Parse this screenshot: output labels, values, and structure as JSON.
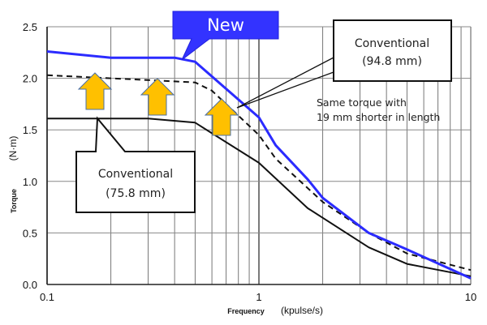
{
  "chart_data": {
    "type": "line",
    "title": "",
    "xlabel": "Frequency",
    "xunit": "(kpulse/s)",
    "ylabel": "Torque",
    "yunit": "(N·m)",
    "xscale": "log",
    "xlim": [
      0.1,
      10
    ],
    "ylim": [
      0,
      2.5
    ],
    "grid": true,
    "x_ticks": [
      {
        "v": 0.1,
        "label": "0.1"
      },
      {
        "v": 1,
        "label": "1"
      },
      {
        "v": 10,
        "label": "10"
      }
    ],
    "y_ticks": [
      {
        "v": 0,
        "label": "0.0"
      },
      {
        "v": 0.5,
        "label": "0.5"
      },
      {
        "v": 1,
        "label": "1.0"
      },
      {
        "v": 1.5,
        "label": "1.5"
      },
      {
        "v": 2,
        "label": "2.0"
      },
      {
        "v": 2.5,
        "label": "2.5"
      }
    ],
    "series": [
      {
        "name": "New",
        "style": "solid",
        "color": "#2b2bff",
        "points": [
          [
            0.1,
            2.26
          ],
          [
            0.2,
            2.2
          ],
          [
            0.4,
            2.2
          ],
          [
            0.5,
            2.16
          ],
          [
            1,
            1.62
          ],
          [
            1.2,
            1.35
          ],
          [
            1.7,
            1.02
          ],
          [
            2,
            0.84
          ],
          [
            3.3,
            0.5
          ],
          [
            5,
            0.34
          ],
          [
            10,
            0.06
          ]
        ]
      },
      {
        "name": "Conventional (94.8 mm)",
        "style": "dashed",
        "color": "#111111",
        "points": [
          [
            0.1,
            2.03
          ],
          [
            0.2,
            2.0
          ],
          [
            0.4,
            1.97
          ],
          [
            0.5,
            1.96
          ],
          [
            0.6,
            1.88
          ],
          [
            1,
            1.45
          ],
          [
            1.2,
            1.22
          ],
          [
            2,
            0.8
          ],
          [
            3.3,
            0.5
          ],
          [
            5,
            0.3
          ],
          [
            10,
            0.14
          ]
        ]
      },
      {
        "name": "Conventional (75.8 mm)",
        "style": "solid",
        "color": "#111111",
        "points": [
          [
            0.1,
            1.61
          ],
          [
            0.3,
            1.61
          ],
          [
            0.5,
            1.57
          ],
          [
            1,
            1.18
          ],
          [
            1.7,
            0.74
          ],
          [
            3.3,
            0.36
          ],
          [
            5,
            0.2
          ],
          [
            10,
            0.08
          ]
        ]
      }
    ],
    "annotations": {
      "new_label": "New",
      "conv94_line1": "Conventional",
      "conv94_line2": "(94.8 mm)",
      "conv75_line1": "Conventional",
      "conv75_line2": "(75.8 mm)",
      "note_line1": "Same torque with",
      "note_line2": "19 mm shorter in length"
    },
    "colors": {
      "accent": "#3333ff",
      "arrow": "#ffc000",
      "arrow_border": "#4a6fa5"
    }
  }
}
